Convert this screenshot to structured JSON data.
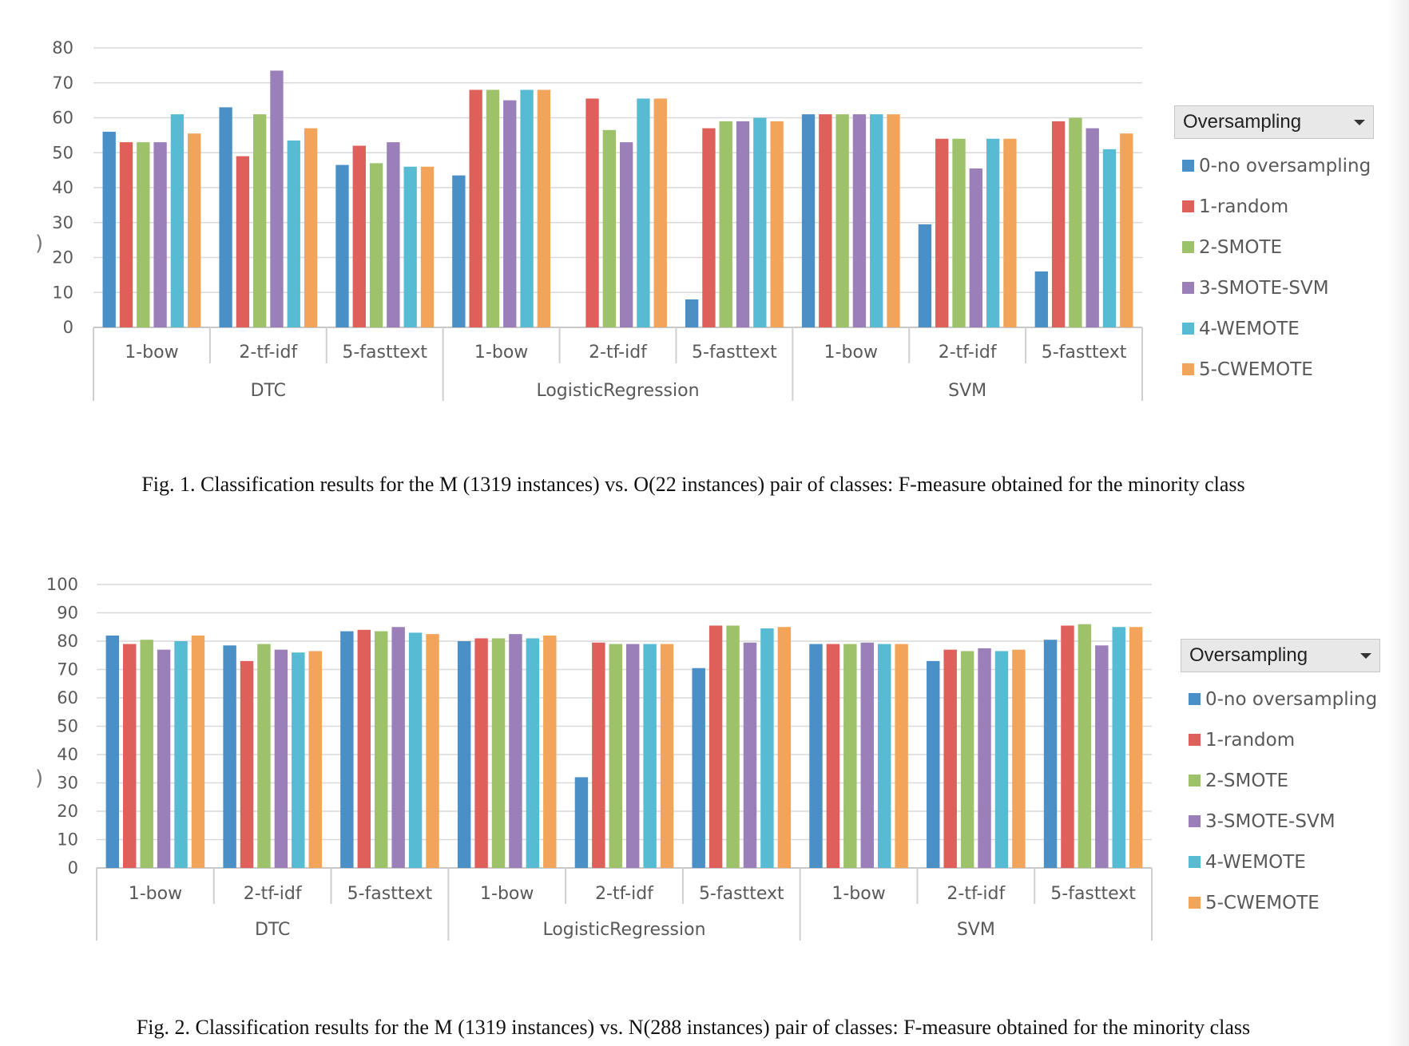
{
  "page": {
    "edge_marks": [
      ")",
      ")"
    ]
  },
  "legend": {
    "title": "Oversampling",
    "items": [
      {
        "label": "0-no oversampling",
        "color": "#4a90c6"
      },
      {
        "label": "1-random",
        "color": "#df5f5a"
      },
      {
        "label": "2-SMOTE",
        "color": "#9dc26a"
      },
      {
        "label": "3-SMOTE-SVM",
        "color": "#9b7fb8"
      },
      {
        "label": "4-WEMOTE",
        "color": "#57bbd4"
      },
      {
        "label": "5-CWEMOTE",
        "color": "#f2a55a"
      }
    ]
  },
  "figures": [
    {
      "caption": "Fig. 1. Classification results for the M (1319 instances) vs. O(22 instances) pair of classes: F-measure obtained for the minority class",
      "chart_data": {
        "type": "bar",
        "title": "",
        "xlabel": "",
        "ylabel": "",
        "ylim": [
          0,
          80
        ],
        "yticks": [
          0,
          10,
          20,
          30,
          40,
          50,
          60,
          70,
          80
        ],
        "grid": true,
        "legend_position": "right",
        "groups": [
          {
            "name": "DTC",
            "categories": [
              "1-bow",
              "2-tf-idf",
              "5-fasttext"
            ]
          },
          {
            "name": "LogisticRegression",
            "categories": [
              "1-bow",
              "2-tf-idf",
              "5-fasttext"
            ]
          },
          {
            "name": "SVM",
            "categories": [
              "1-bow",
              "2-tf-idf",
              "5-fasttext"
            ]
          }
        ],
        "series": [
          {
            "name": "0-no oversampling",
            "values": [
              56,
              63,
              46.5,
              43.5,
              0,
              8,
              61,
              29.5,
              16
            ]
          },
          {
            "name": "1-random",
            "values": [
              53,
              49,
              52,
              68,
              65.5,
              57,
              61,
              54,
              59
            ]
          },
          {
            "name": "2-SMOTE",
            "values": [
              53,
              61,
              47,
              68,
              56.5,
              59,
              61,
              54,
              60
            ]
          },
          {
            "name": "3-SMOTE-SVM",
            "values": [
              53,
              73.5,
              53,
              65,
              53,
              59,
              61,
              45.5,
              57
            ]
          },
          {
            "name": "4-WEMOTE",
            "values": [
              61,
              53.5,
              46,
              68,
              65.5,
              60,
              61,
              54,
              51
            ]
          },
          {
            "name": "5-CWEMOTE",
            "values": [
              55.5,
              57,
              46,
              68,
              65.5,
              59,
              61,
              54,
              55.5
            ]
          }
        ]
      }
    },
    {
      "caption": "Fig. 2. Classification results for the M (1319 instances) vs. N(288 instances) pair of classes: F-measure obtained for the minority class",
      "chart_data": {
        "type": "bar",
        "title": "",
        "xlabel": "",
        "ylabel": "",
        "ylim": [
          0,
          100
        ],
        "yticks": [
          0,
          10,
          20,
          30,
          40,
          50,
          60,
          70,
          80,
          90,
          100
        ],
        "grid": true,
        "legend_position": "right",
        "groups": [
          {
            "name": "DTC",
            "categories": [
              "1-bow",
              "2-tf-idf",
              "5-fasttext"
            ]
          },
          {
            "name": "LogisticRegression",
            "categories": [
              "1-bow",
              "2-tf-idf",
              "5-fasttext"
            ]
          },
          {
            "name": "SVM",
            "categories": [
              "1-bow",
              "2-tf-idf",
              "5-fasttext"
            ]
          }
        ],
        "series": [
          {
            "name": "0-no oversampling",
            "values": [
              82,
              78.5,
              83.5,
              80,
              32,
              70.5,
              79,
              73,
              80.5
            ]
          },
          {
            "name": "1-random",
            "values": [
              79,
              73,
              84,
              81,
              79.5,
              85.5,
              79,
              77,
              85.5
            ]
          },
          {
            "name": "2-SMOTE",
            "values": [
              80.5,
              79,
              83.5,
              81,
              79,
              85.5,
              79,
              76.5,
              86
            ]
          },
          {
            "name": "3-SMOTE-SVM",
            "values": [
              77,
              77,
              85,
              82.5,
              79,
              79.5,
              79.5,
              77.5,
              78.5
            ]
          },
          {
            "name": "4-WEMOTE",
            "values": [
              80,
              76,
              83,
              81,
              79,
              84.5,
              79,
              76.5,
              85
            ]
          },
          {
            "name": "5-CWEMOTE",
            "values": [
              82,
              76.5,
              82.5,
              82,
              79,
              85,
              79,
              77,
              85
            ]
          }
        ]
      }
    }
  ]
}
